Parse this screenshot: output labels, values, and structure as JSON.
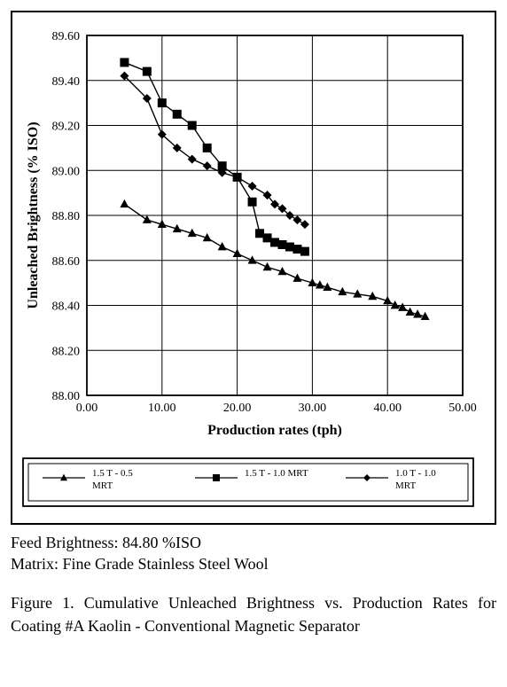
{
  "chart": {
    "type": "line-scatter",
    "bg": "#ffffff",
    "border_color": "#000000",
    "axis_color": "#000000",
    "grid_color": "#000000",
    "xlabel": "Production rates (tph)",
    "ylabel": "Unleached Brightness (% ISO)",
    "label_fontsize": 16,
    "tick_fontsize": 14,
    "xlim": [
      0,
      50
    ],
    "ylim": [
      88.0,
      89.6
    ],
    "xticks": [
      0,
      10,
      20,
      30,
      40,
      50
    ],
    "xtick_labels": [
      "0.00",
      "10.00",
      "20.00",
      "30.00",
      "40.00",
      "50.00"
    ],
    "yticks": [
      88.0,
      88.2,
      88.4,
      88.6,
      88.8,
      89.0,
      89.2,
      89.4,
      89.6
    ],
    "ytick_labels": [
      "88.00",
      "88.20",
      "88.40",
      "88.60",
      "88.80",
      "89.00",
      "89.20",
      "89.40",
      "89.60"
    ],
    "series": [
      {
        "name": "1.5 T - 0.5 MRT",
        "marker": "triangle",
        "color": "#000000",
        "line_width": 1.4,
        "marker_size": 5,
        "x": [
          5,
          8,
          10,
          12,
          14,
          16,
          18,
          20,
          22,
          24,
          26,
          28,
          30,
          31,
          32,
          34,
          36,
          38,
          40,
          41,
          42,
          43,
          44,
          45
        ],
        "y": [
          88.85,
          88.78,
          88.76,
          88.74,
          88.72,
          88.7,
          88.66,
          88.63,
          88.6,
          88.57,
          88.55,
          88.52,
          88.5,
          88.49,
          88.48,
          88.46,
          88.45,
          88.44,
          88.42,
          88.4,
          88.39,
          88.37,
          88.36,
          88.35
        ]
      },
      {
        "name": "1.5 T - 1.0 MRT",
        "marker": "square",
        "color": "#000000",
        "line_width": 1.4,
        "marker_size": 5,
        "x": [
          5,
          8,
          10,
          12,
          14,
          16,
          18,
          20,
          22,
          23,
          24,
          25,
          26,
          27,
          28,
          29
        ],
        "y": [
          89.48,
          89.44,
          89.3,
          89.25,
          89.2,
          89.1,
          89.02,
          88.97,
          88.86,
          88.72,
          88.7,
          88.68,
          88.67,
          88.66,
          88.65,
          88.64
        ]
      },
      {
        "name": "1.0 T - 1.0 MRT",
        "marker": "diamond",
        "color": "#000000",
        "line_width": 1.4,
        "marker_size": 5,
        "x": [
          5,
          8,
          10,
          12,
          14,
          16,
          18,
          20,
          22,
          24,
          25,
          26,
          27,
          28,
          29
        ],
        "y": [
          89.42,
          89.32,
          89.16,
          89.1,
          89.05,
          89.02,
          88.99,
          88.97,
          88.93,
          88.89,
          88.85,
          88.83,
          88.8,
          88.78,
          88.76
        ]
      }
    ],
    "legend": {
      "items": [
        "1.5 T - 0.5 MRT",
        "1.5 T - 1.0 MRT",
        "1.0 T - 1.0 MRT"
      ],
      "font_size": 11,
      "border_color": "#000000"
    }
  },
  "notes": {
    "line1": "Feed Brightness: 84.80 %ISO",
    "line2": "Matrix: Fine Grade Stainless Steel Wool"
  },
  "caption": "Figure 1. Cumulative Unleached Brightness vs. Production Rates for Coating #A Kaolin - Conventional Magnetic Separator"
}
